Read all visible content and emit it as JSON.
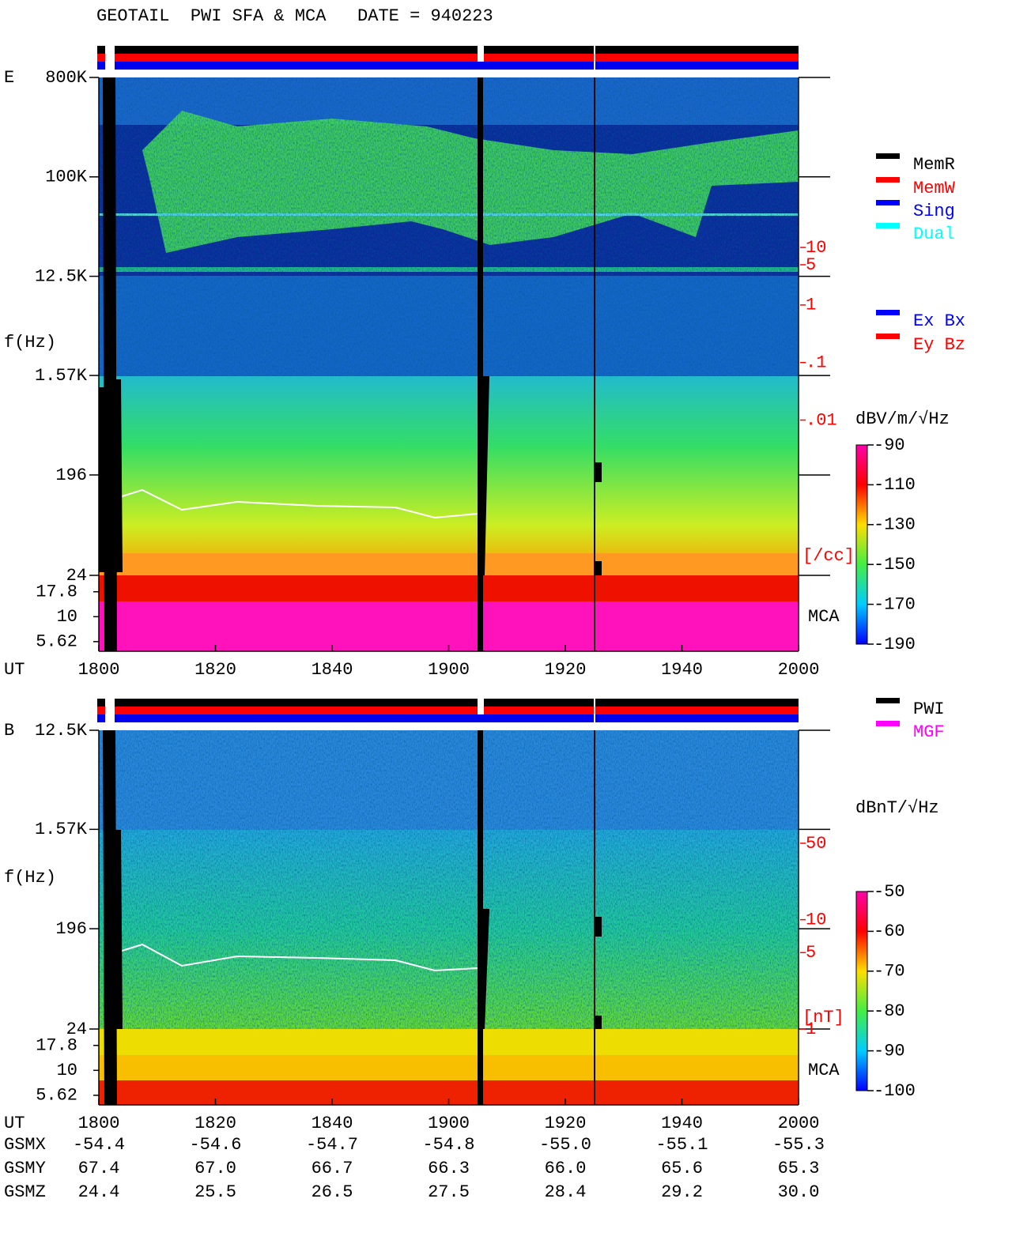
{
  "title": "GEOTAIL  PWI SFA & MCA   DATE = 940223",
  "chart_data": [
    {
      "type": "spectrogram",
      "panel_label": "E",
      "y_label": "f(Hz)",
      "x_label": "UT",
      "log_y": true,
      "ylim": [
        24,
        800000
      ],
      "yticks": [
        {
          "value": 800000,
          "label": "800K"
        },
        {
          "value": 100000,
          "label": "100K"
        },
        {
          "value": 12500,
          "label": "12.5K"
        },
        {
          "value": 1570,
          "label": "1.57K"
        },
        196,
        24
      ],
      "mca_label": "MCA",
      "mca_ylim": [
        4.5,
        26
      ],
      "mca_ticks": [
        17.8,
        10,
        5.62
      ],
      "x": [
        "1800",
        "1820",
        "1840",
        "1900",
        "1920",
        "1940",
        "2000"
      ],
      "colorbar": {
        "label": "dBV/m/√Hz",
        "lim": [
          -190,
          -90
        ],
        "ticks": [
          -90,
          -110,
          -130,
          -150,
          -170,
          -190
        ]
      },
      "density_lim": [
        2e-05,
        9000
      ],
      "density_ticks": [
        10,
        5,
        1,
        {
          "value": 0.1,
          "label": ".1"
        },
        {
          "value": 0.01,
          "label": ".01"
        }
      ],
      "density_label": "[/cc]",
      "density_color": "#ff0000",
      "legend": [
        {
          "name": "MemR",
          "color": "#000000"
        },
        {
          "name": "MemW",
          "color": "#ff0000"
        },
        {
          "name": "Sing",
          "color": "#0000ff"
        },
        {
          "name": "Dual",
          "color": "#00ffff"
        },
        {
          "name": "Ex Bx",
          "color": "#0000ff"
        },
        {
          "name": "Ey Bz",
          "color": "#ff0000"
        }
      ]
    },
    {
      "type": "spectrogram",
      "panel_label": "B",
      "y_label": "f(Hz)",
      "x_label": "UT",
      "log_y": true,
      "ylim": [
        24,
        12500
      ],
      "yticks": [
        {
          "value": 12500,
          "label": "12.5K"
        },
        {
          "value": 1570,
          "label": "1.57K"
        },
        196,
        24
      ],
      "mca_label": "MCA",
      "mca_ylim": [
        4.5,
        26
      ],
      "mca_ticks": [
        17.8,
        10,
        5.62
      ],
      "x": [
        "1800",
        "1820",
        "1840",
        "1900",
        "1920",
        "1940",
        "2000"
      ],
      "colorbar": {
        "label": "dBnT/√Hz",
        "lim": [
          -100,
          -50
        ],
        "ticks": [
          -50,
          -60,
          -70,
          -80,
          -90,
          -100
        ]
      },
      "density_lim": [
        1,
        540
      ],
      "density_ticks": [
        50,
        10,
        5,
        1
      ],
      "density_label": "[nT]",
      "density_color": "#ff0000",
      "legend": [
        {
          "name": "PWI",
          "color": "#000000"
        },
        {
          "name": "MGF",
          "color": "#ff00ff"
        }
      ]
    }
  ],
  "ephemeris": {
    "rows": [
      {
        "label": "GSMX",
        "values": [
          "-54.4",
          "-54.6",
          "-54.7",
          "-54.8",
          "-55.0",
          "-55.1",
          "-55.3"
        ]
      },
      {
        "label": "GSMY",
        "values": [
          "67.4",
          "67.0",
          "66.7",
          "66.3",
          "66.0",
          "65.6",
          "65.3"
        ]
      },
      {
        "label": "GSMZ",
        "values": [
          "24.4",
          "25.5",
          "26.5",
          "27.5",
          "28.4",
          "29.2",
          "30.0"
        ]
      }
    ]
  }
}
